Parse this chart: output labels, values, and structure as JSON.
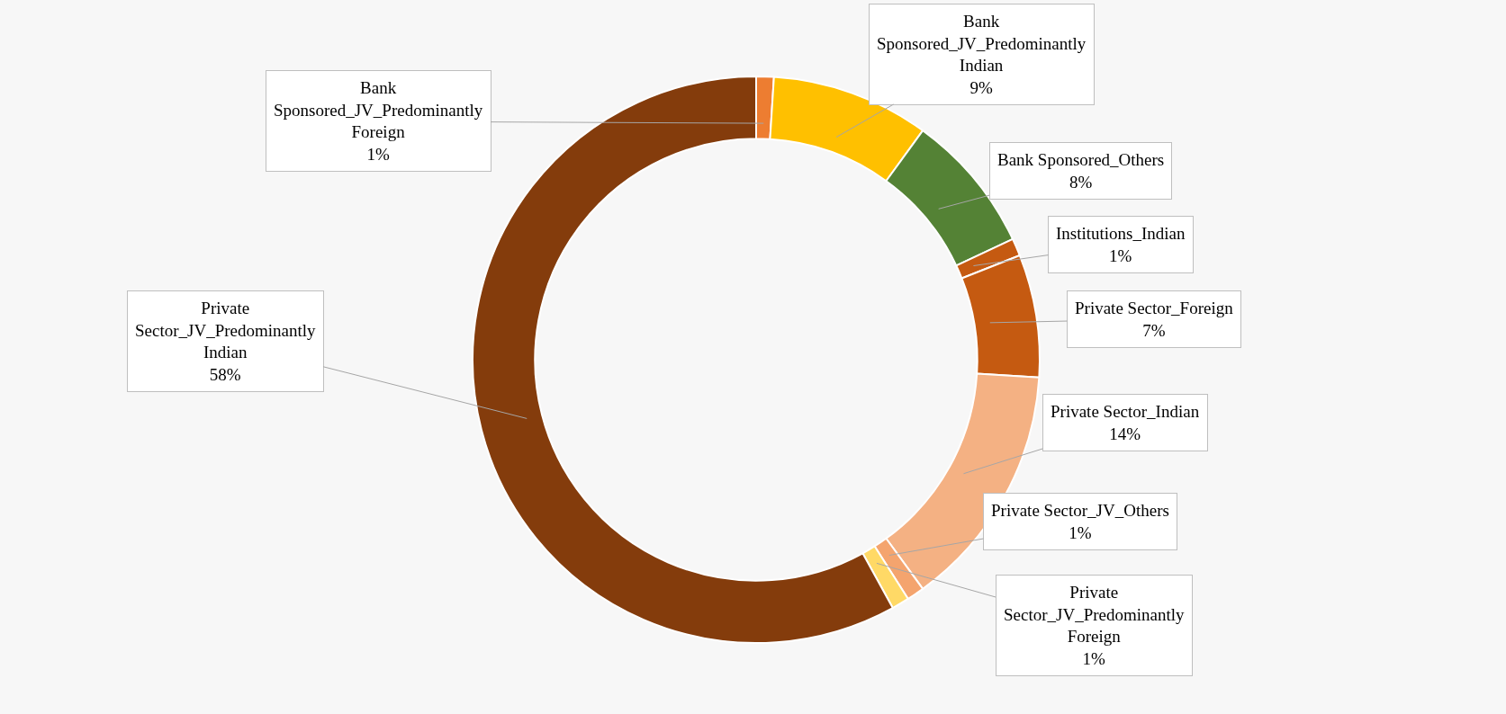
{
  "chart_data": {
    "type": "donut",
    "categories": [
      "Bank Sponsored_JV_Predominantly Foreign",
      "Bank Sponsored_JV_Predominantly Indian",
      "Bank Sponsored_Others",
      "Institutions_Indian",
      "Private Sector_Foreign",
      "Private Sector_Indian",
      "Private Sector_JV_Others",
      "Private Sector_JV_Predominantly Foreign",
      "Private Sector_JV_Predominantly Indian"
    ],
    "values": [
      1,
      9,
      8,
      1,
      7,
      14,
      1,
      1,
      58
    ],
    "value_labels": [
      "1%",
      "9%",
      "8%",
      "1%",
      "7%",
      "14%",
      "1%",
      "1%",
      "58%"
    ],
    "colors": [
      "#ed7d31",
      "#ffc000",
      "#548235",
      "#c55a11",
      "#c55a11",
      "#f4b183",
      "#f4a46e",
      "#ffd966",
      "#843c0c"
    ]
  }
}
